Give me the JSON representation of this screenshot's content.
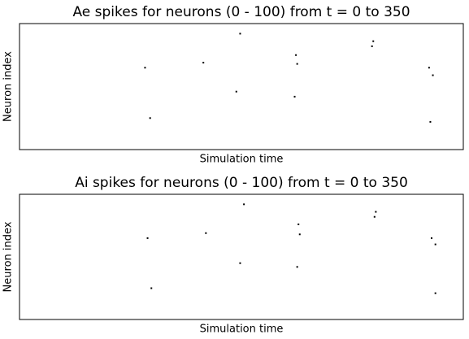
{
  "chart_data": [
    {
      "type": "scatter",
      "title": "Ae spikes for neurons (0 - 100) from t = 0 to 350",
      "x_label": "Simulation time",
      "y_label": "Neuron index",
      "x": [
        174,
        99,
        145,
        218,
        219,
        279,
        278,
        323,
        326,
        171,
        217,
        103,
        324
      ],
      "values": [
        92,
        65,
        69,
        75,
        68,
        86,
        82,
        65,
        59,
        46,
        42,
        25,
        22
      ],
      "color": "#000000",
      "xlim": [
        0,
        350
      ],
      "ylim": [
        0,
        100
      ],
      "grid": false
    },
    {
      "type": "scatter",
      "title": "Ai spikes for neurons (0 - 100) from t = 0 to 350",
      "x_label": "Simulation time",
      "y_label": "Neuron index",
      "x": [
        177,
        101,
        147,
        220,
        221,
        281,
        280,
        325,
        328,
        174,
        219,
        104,
        328
      ],
      "values": [
        92,
        65,
        69,
        76,
        68,
        86,
        82,
        65,
        60,
        45,
        42,
        25,
        21
      ],
      "color": "#000000",
      "xlim": [
        0,
        350
      ],
      "ylim": [
        0,
        100
      ],
      "grid": false
    }
  ]
}
